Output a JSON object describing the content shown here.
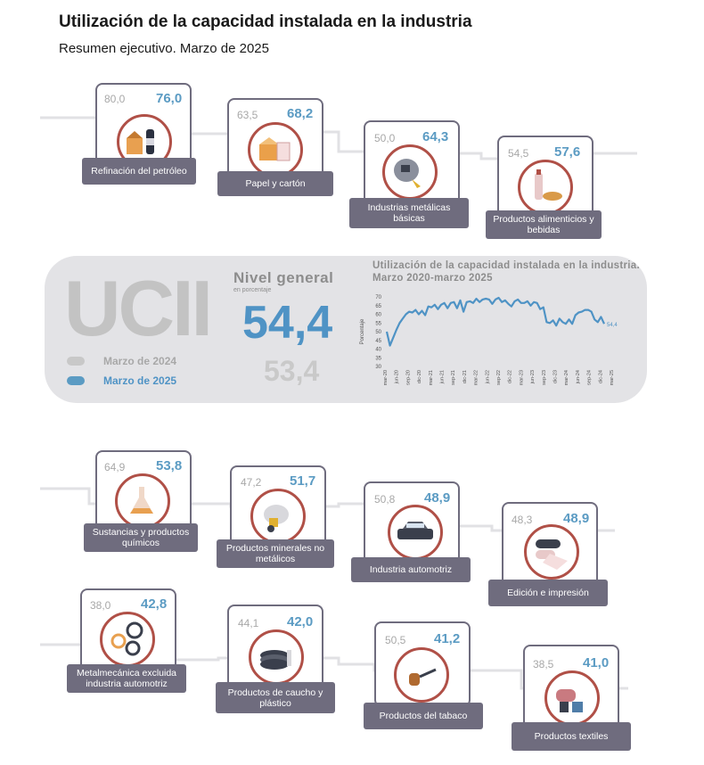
{
  "header": {
    "title": "Utilización de la capacidad instalada en la industria",
    "subtitle": "Resumen ejecutivo. Marzo de 2025"
  },
  "colors": {
    "current": "#5b9bc3",
    "previous": "#a8a8a8",
    "label_bg": "#6f6c7e",
    "icon_ring": "#b05047"
  },
  "sectors": [
    {
      "label": "Refinación del petróleo",
      "prev": "80,0",
      "cur": "76,0",
      "icon": "oil-refining-icon"
    },
    {
      "label": "Papel y cartón",
      "prev": "63,5",
      "cur": "68,2",
      "icon": "paper-box-icon"
    },
    {
      "label": "Industrias metálicas básicas",
      "prev": "50,0",
      "cur": "64,3",
      "icon": "metal-helmet-icon"
    },
    {
      "label": "Productos alimenticios y bebidas",
      "prev": "54,5",
      "cur": "57,6",
      "icon": "food-bottle-icon"
    },
    {
      "label": "Sustancias y productos químicos",
      "prev": "64,9",
      "cur": "53,8",
      "icon": "chemical-flask-icon"
    },
    {
      "label": "Productos minerales no metálicos",
      "prev": "47,2",
      "cur": "51,7",
      "icon": "cement-mixer-icon"
    },
    {
      "label": "Industria automotriz",
      "prev": "50,8",
      "cur": "48,9",
      "icon": "car-icon"
    },
    {
      "label": "Edición e impresión",
      "prev": "48,3",
      "cur": "48,9",
      "icon": "printing-roll-icon"
    },
    {
      "label": "Metalmecánica excluida industria automotriz",
      "prev": "38,0",
      "cur": "42,8",
      "icon": "gears-icon"
    },
    {
      "label": "Productos de caucho y plástico",
      "prev": "44,1",
      "cur": "42,0",
      "icon": "plastic-plates-icon"
    },
    {
      "label": "Productos del tabaco",
      "prev": "50,5",
      "cur": "41,2",
      "icon": "tobacco-pipe-icon"
    },
    {
      "label": "Productos textiles",
      "prev": "38,5",
      "cur": "41,0",
      "icon": "textile-rolls-icon"
    }
  ],
  "summary": {
    "logo_text": "UCII",
    "legend": [
      {
        "label": "Marzo de 2024",
        "color": "#c8c8c8"
      },
      {
        "label": "Marzo de 2025",
        "color": "#5b9bc3"
      }
    ],
    "general_title": "Nivel general",
    "general_unit": "en porcentaje",
    "general_cur": "54,4",
    "general_prev": "53,4"
  },
  "chart_data": {
    "type": "line",
    "title": "Utilización de la capacidad instalada en la industria. Marzo 2020-marzo 2025",
    "ylabel": "Porcentaje",
    "ylim": [
      30,
      70
    ],
    "yticks": [
      30,
      35,
      40,
      45,
      50,
      55,
      60,
      65,
      70
    ],
    "xticks": [
      "mar-20",
      "jun-20",
      "sep-20",
      "dic-20",
      "mar-21",
      "jun-21",
      "sep-21",
      "dic-21",
      "mar-22",
      "jun-22",
      "sep-22",
      "dic-22",
      "mar-23",
      "jun-23",
      "sep-23",
      "dic-23",
      "mar-24",
      "jun-24",
      "sep-24",
      "dic-24",
      "mar-25"
    ],
    "end_label": "54,4",
    "series": [
      {
        "color": "#4f93c5",
        "values": [
          50.0,
          42.0,
          46.5,
          51.0,
          55.0,
          57.5,
          60.0,
          61.5,
          61.0,
          62.5,
          60.0,
          62.0,
          59.5,
          64.5,
          64.0,
          65.5,
          63.0,
          65.5,
          66.5,
          63.5,
          66.5,
          67.0,
          63.5,
          68.0,
          61.5,
          67.0,
          67.5,
          66.5,
          69.0,
          67.0,
          68.5,
          69.0,
          68.5,
          66.0,
          68.5,
          69.5,
          67.0,
          68.0,
          66.0,
          64.5,
          67.5,
          68.5,
          66.5,
          66.5,
          67.5,
          65.0,
          67.0,
          66.5,
          63.0,
          64.0,
          55.5,
          55.0,
          56.5,
          53.5,
          57.5,
          55.5,
          54.5,
          57.0,
          54.5,
          59.5,
          61.0,
          61.5,
          62.5,
          62.5,
          61.5,
          57.0,
          55.5,
          58.5,
          54.5
        ]
      }
    ]
  }
}
